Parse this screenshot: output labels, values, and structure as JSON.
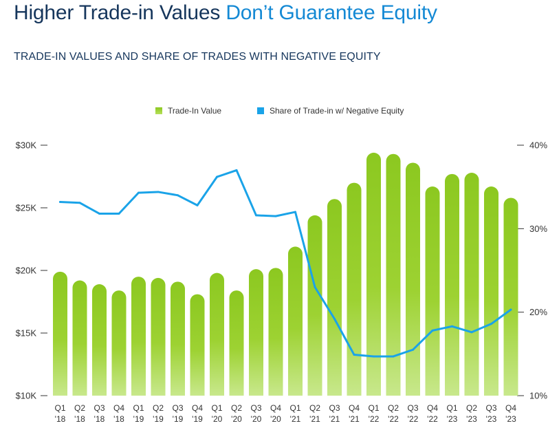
{
  "header": {
    "title_part1": "Higher Trade-in Values ",
    "title_part2": "Don’t Guarantee Equity",
    "subtitle": "TRADE-IN VALUES AND SHARE OF TRADES WITH NEGATIVE EQUITY"
  },
  "colors": {
    "title_dark": "#16365c",
    "title_accent": "#1489d4",
    "bar_top": "#8cc820",
    "bar_bottom": "#c8e88c",
    "line": "#1aa3e8",
    "axis_text": "#333333"
  },
  "chart_data": {
    "type": "bar",
    "title": "TRADE-IN VALUES AND SHARE OF TRADES WITH NEGATIVE EQUITY",
    "legend": [
      "Trade-In Value",
      "Share of Trade-in w/ Negative Equity"
    ],
    "legend_position": "top-center",
    "categories": [
      {
        "q": "Q1",
        "y": "'18"
      },
      {
        "q": "Q2",
        "y": "'18"
      },
      {
        "q": "Q3",
        "y": "'18"
      },
      {
        "q": "Q4",
        "y": "'18"
      },
      {
        "q": "Q1",
        "y": "'19"
      },
      {
        "q": "Q2",
        "y": "'19"
      },
      {
        "q": "Q3",
        "y": "'19"
      },
      {
        "q": "Q4",
        "y": "'19"
      },
      {
        "q": "Q1",
        "y": "'20"
      },
      {
        "q": "Q2",
        "y": "'20"
      },
      {
        "q": "Q3",
        "y": "'20"
      },
      {
        "q": "Q4",
        "y": "'20"
      },
      {
        "q": "Q1",
        "y": "'21"
      },
      {
        "q": "Q2",
        "y": "'21"
      },
      {
        "q": "Q3",
        "y": "'21"
      },
      {
        "q": "Q4",
        "y": "'21"
      },
      {
        "q": "Q1",
        "y": "'22"
      },
      {
        "q": "Q2",
        "y": "'22"
      },
      {
        "q": "Q3",
        "y": "'22"
      },
      {
        "q": "Q4",
        "y": "'22"
      },
      {
        "q": "Q1",
        "y": "'23"
      },
      {
        "q": "Q2",
        "y": "'23"
      },
      {
        "q": "Q3",
        "y": "'23"
      },
      {
        "q": "Q4",
        "y": "'23"
      }
    ],
    "series": [
      {
        "name": "Trade-In Value",
        "kind": "bar",
        "axis": "left",
        "values": [
          19900,
          19200,
          18900,
          18400,
          19500,
          19400,
          19100,
          18100,
          19800,
          18400,
          20100,
          20200,
          21900,
          24400,
          25700,
          27000,
          29400,
          29300,
          28600,
          26700,
          27700,
          27800,
          26700,
          25800
        ]
      },
      {
        "name": "Share of Trade-in w/ Negative Equity",
        "kind": "line",
        "axis": "right",
        "values": [
          33.2,
          33.1,
          31.8,
          31.8,
          34.3,
          34.4,
          34.0,
          32.8,
          36.2,
          37.0,
          31.6,
          31.5,
          32.0,
          23.0,
          19.2,
          14.9,
          14.7,
          14.7,
          15.5,
          17.8,
          18.3,
          17.6,
          18.6,
          20.3
        ]
      }
    ],
    "y_left": {
      "range": [
        10000,
        30000
      ],
      "ticks": [
        {
          "value": 10000,
          "label": "$10K"
        },
        {
          "value": 15000,
          "label": "$15K"
        },
        {
          "value": 20000,
          "label": "$20K"
        },
        {
          "value": 25000,
          "label": "$25K"
        },
        {
          "value": 30000,
          "label": "$30K"
        }
      ]
    },
    "y_right": {
      "range": [
        10,
        40
      ],
      "ticks": [
        {
          "value": 10,
          "label": "10%"
        },
        {
          "value": 20,
          "label": "20%"
        },
        {
          "value": 30,
          "label": "30%"
        },
        {
          "value": 40,
          "label": "40%"
        }
      ]
    },
    "grid": false
  }
}
